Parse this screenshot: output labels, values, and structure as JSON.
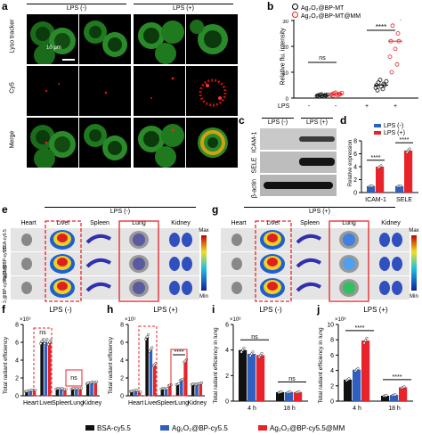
{
  "panel_letters": {
    "a": "a",
    "b": "b",
    "c": "c",
    "d": "d",
    "e": "e",
    "f": "f",
    "g": "g",
    "h": "h",
    "i": "i",
    "j": "j"
  },
  "panel_a": {
    "group_neg": "LPS (-)",
    "group_pos": "LPS (+)",
    "rows": [
      "Lyso tracker",
      "Cy5",
      "Merge"
    ],
    "scale": "10 μm"
  },
  "panel_b": {
    "legend": [
      "Ag₂O₂@BP-MT",
      "Ag₂O₂@BP-MT@MM"
    ],
    "ylabel": "Relative flu. intensity",
    "ns": "ns",
    "sig": "****",
    "lps_label": "LPS",
    "lps_states": [
      "-",
      "-",
      "+",
      "+"
    ]
  },
  "panel_c": {
    "cols": [
      "LPS (-)",
      "LPS (+)"
    ],
    "rows": [
      "ICAM-1",
      "SELE",
      "β-actin"
    ]
  },
  "panel_d": {
    "legend": [
      "LPS (-)",
      "LPS (+)"
    ],
    "ylabel": "Relative expression",
    "sig": "****"
  },
  "panel_e": {
    "title": "LPS (-)",
    "organs": [
      "Heart",
      "Liver",
      "Spleen",
      "Lung",
      "Kidney"
    ],
    "rows": [
      "BSA-cy5.5",
      "Ag₂O₂@BP-cy5.5",
      "Ag₂O₂@BP-cy5.5@MM"
    ],
    "max": "Max",
    "min": "Min"
  },
  "panel_g": {
    "title": "LPS (+)",
    "organs": [
      "Heart",
      "Liver",
      "Spleen",
      "Lung",
      "Kidney"
    ],
    "max": "Max",
    "min": "Min"
  },
  "panel_f": {
    "title": "LPS (-)",
    "ylabel": "Total radiant efficiency",
    "exp": "×10⁹",
    "ns1": "ns",
    "ns2": "ns"
  },
  "panel_h": {
    "title": "LPS (+)",
    "ylabel": "Total radiant efficiency",
    "exp": "×10⁹",
    "sig": "****"
  },
  "panel_i": {
    "title": "LPS (-)",
    "ylabel": "Total radiant efficiency in lung",
    "exp": "×10⁸",
    "ns1": "ns",
    "ns2": "ns",
    "xcats": [
      "4 h",
      "18 h"
    ]
  },
  "panel_j": {
    "title": "LPS (+)",
    "ylabel": "Total radiant efficiency in lung",
    "exp": "×10⁸",
    "sig": "****",
    "xcats": [
      "4 h",
      "18 h"
    ]
  },
  "legend_bottom": [
    "BSA-cy5.5",
    "Ag₂O₂@BP-cy5.5",
    "Ag₂O₂@BP-cy5.5@MM"
  ],
  "colors": {
    "black": "#111111",
    "blue": "#2f5fbf",
    "red": "#e8242a",
    "green": "#39b54a"
  },
  "chart_data": [
    {
      "id": "b",
      "type": "scatter",
      "ylabel": "Relative flu. intensity",
      "ylim": [
        0,
        30
      ],
      "yticks": [
        0,
        10,
        20,
        30
      ],
      "series": [
        {
          "name": "Ag₂O₂@BP-MT",
          "values": [
            1,
            1,
            5,
            5
          ]
        },
        {
          "name": "Ag₂O₂@BP-MT@MM",
          "values": [
            1,
            1.5,
            0,
            22
          ]
        }
      ],
      "lps": [
        "-",
        "-",
        "+",
        "+"
      ],
      "means": [
        1,
        1.5,
        5,
        22
      ]
    },
    {
      "id": "d",
      "type": "bar",
      "categories": [
        "ICAM-1",
        "SELE"
      ],
      "ylabel": "Relative expression",
      "ylim": [
        0,
        8
      ],
      "yticks": [
        0,
        2,
        4,
        6,
        8
      ],
      "series": [
        {
          "name": "LPS (-)",
          "values": [
            1,
            1
          ]
        },
        {
          "name": "LPS (+)",
          "values": [
            4,
            6.5
          ]
        }
      ]
    },
    {
      "id": "f",
      "type": "bar",
      "title": "LPS (-)",
      "categories": [
        "Heart",
        "Liver",
        "Spleen",
        "Lung",
        "Kidney"
      ],
      "ylim": [
        0,
        8
      ],
      "yticks": [
        0,
        2,
        4,
        6,
        8
      ],
      "series": [
        {
          "name": "BSA-cy5.5",
          "values": [
            0.5,
            6.1,
            0.8,
            0.8,
            1.4
          ]
        },
        {
          "name": "Ag₂O₂@BP-cy5.5",
          "values": [
            0.6,
            6.1,
            0.8,
            0.8,
            1.5
          ]
        },
        {
          "name": "Ag₂O₂@BP-cy5.5@MM",
          "values": [
            0.6,
            6.0,
            0.7,
            0.8,
            1.5
          ]
        }
      ]
    },
    {
      "id": "h",
      "type": "bar",
      "title": "LPS (+)",
      "categories": [
        "Heart",
        "Liver",
        "Spleen",
        "Lung",
        "Kidney"
      ],
      "ylim": [
        0,
        8
      ],
      "yticks": [
        0,
        2,
        4,
        6,
        8
      ],
      "series": [
        {
          "name": "BSA-cy5.5",
          "values": [
            0.5,
            6.6,
            0.8,
            1.3,
            1.3
          ]
        },
        {
          "name": "Ag₂O₂@BP-cy5.5",
          "values": [
            0.6,
            5.2,
            0.8,
            1.8,
            1.3
          ]
        },
        {
          "name": "Ag₂O₂@BP-cy5.5@MM",
          "values": [
            0.4,
            3.5,
            1.2,
            3.9,
            1.4
          ]
        }
      ]
    },
    {
      "id": "i",
      "type": "bar",
      "title": "LPS (-)",
      "categories": [
        "4 h",
        "18 h"
      ],
      "ylim": [
        0,
        6
      ],
      "yticks": [
        0,
        2,
        4,
        6
      ],
      "series": [
        {
          "name": "BSA-cy5.5",
          "values": [
            4.0,
            0.7
          ]
        },
        {
          "name": "Ag₂O₂@BP-cy5.5",
          "values": [
            3.7,
            0.7
          ]
        },
        {
          "name": "Ag₂O₂@BP-cy5.5@MM",
          "values": [
            3.6,
            0.7
          ]
        }
      ]
    },
    {
      "id": "j",
      "type": "bar",
      "title": "LPS (+)",
      "categories": [
        "4 h",
        "18 h"
      ],
      "ylim": [
        0,
        10
      ],
      "yticks": [
        0,
        2,
        4,
        6,
        8,
        10
      ],
      "series": [
        {
          "name": "BSA-cy5.5",
          "values": [
            2.8,
            0.7
          ]
        },
        {
          "name": "Ag₂O₂@BP-cy5.5",
          "values": [
            4.1,
            0.8
          ]
        },
        {
          "name": "Ag₂O₂@BP-cy5.5@MM",
          "values": [
            7.9,
            1.8
          ]
        }
      ]
    }
  ]
}
